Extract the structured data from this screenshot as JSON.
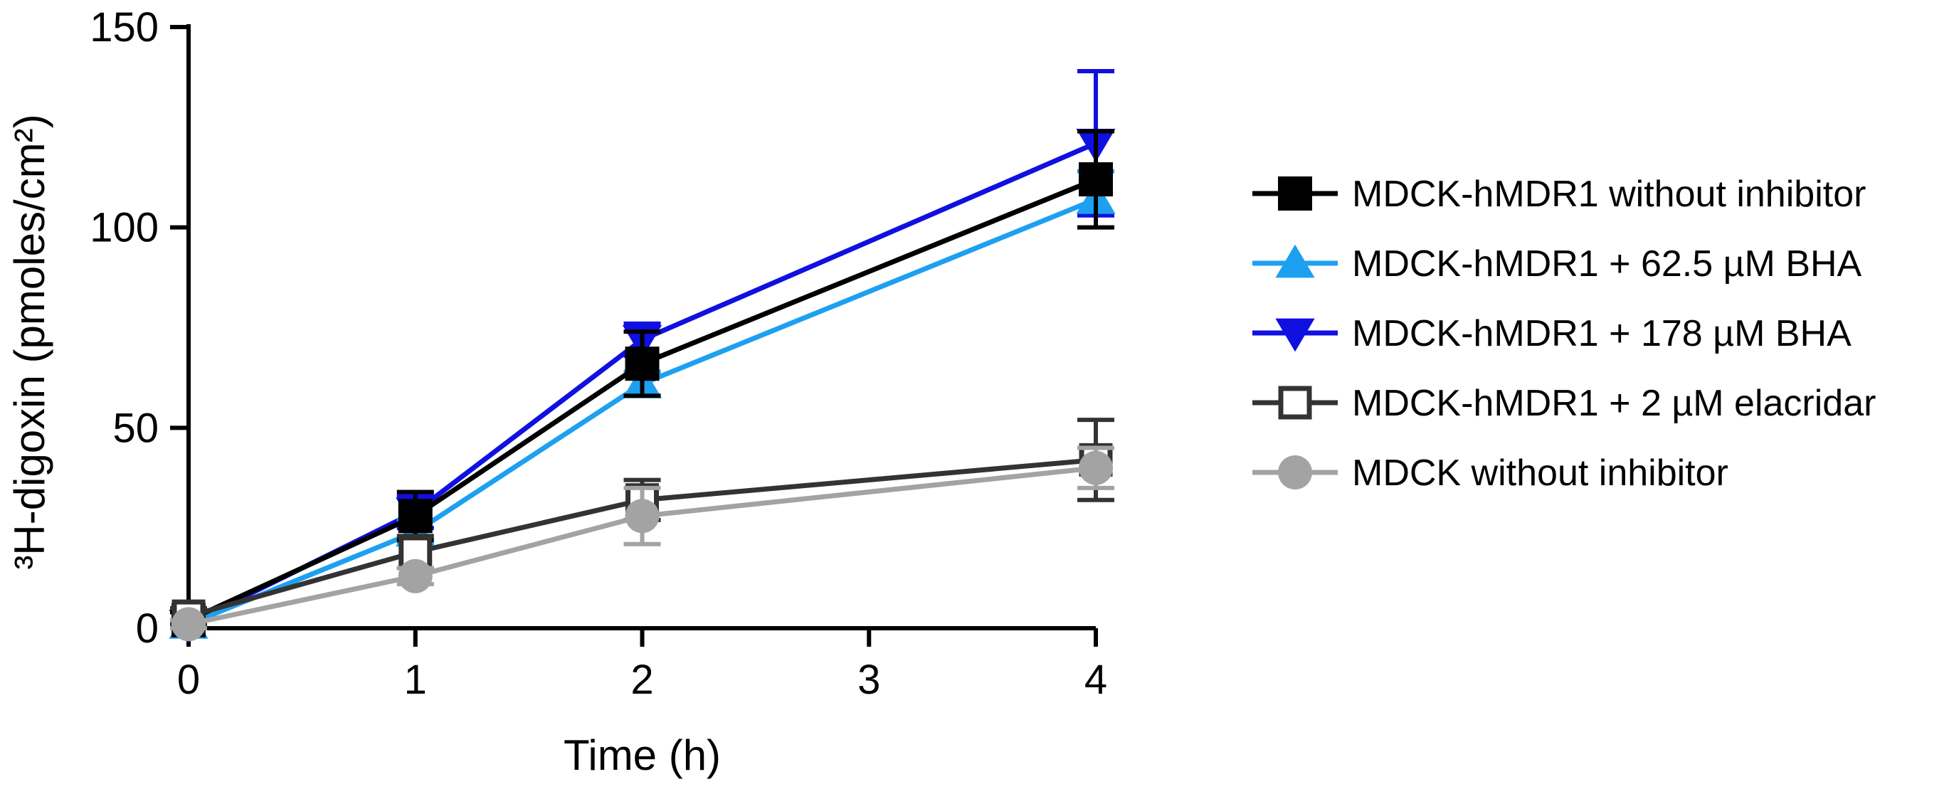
{
  "chart_data": {
    "type": "line",
    "title": "",
    "xlabel": "Time (h)",
    "ylabel": "³H-digoxin (pmoles/cm²)",
    "x": [
      0,
      1,
      2,
      4
    ],
    "xlim": [
      0,
      4
    ],
    "ylim": [
      0,
      150
    ],
    "xticks": [
      0,
      1,
      2,
      3,
      4
    ],
    "xtick_labels": [
      "0",
      "1",
      "2",
      "3",
      "4"
    ],
    "yticks": [
      0,
      50,
      100,
      150
    ],
    "ytick_labels": [
      "0",
      "50",
      "100",
      "150"
    ],
    "grid": false,
    "legend_position": "right",
    "series": [
      {
        "name": "MDCK-hMDR1 + 178 µM BHA",
        "color": "#1010e0",
        "marker": "triangle-down",
        "values": [
          1,
          29,
          72,
          121
        ],
        "errors": [
          1,
          4,
          4,
          18
        ]
      },
      {
        "name": "MDCK-hMDR1 + 62.5 µM BHA",
        "color": "#1ea0f0",
        "marker": "triangle-up",
        "values": [
          1,
          24,
          61,
          107
        ],
        "errors": [
          1,
          3,
          3,
          7
        ]
      },
      {
        "name": "MDCK-hMDR1 without inhibitor",
        "color": "#000000",
        "marker": "square-filled",
        "values": [
          2,
          28,
          66,
          112
        ],
        "errors": [
          2,
          6,
          8,
          12
        ]
      },
      {
        "name": "MDCK-hMDR1 + 2 µM elacridar",
        "color": "#333333",
        "marker": "square-open",
        "values": [
          3,
          19,
          32,
          42
        ],
        "errors": [
          2,
          4,
          5,
          10
        ]
      },
      {
        "name": "MDCK without inhibitor",
        "color": "#a3a3a3",
        "marker": "circle",
        "values": [
          1,
          13,
          28,
          40
        ],
        "errors": [
          1,
          2,
          7,
          5
        ]
      }
    ],
    "legend_order": [
      "MDCK-hMDR1 without inhibitor",
      "MDCK-hMDR1 + 62.5 µM BHA",
      "MDCK-hMDR1 + 178 µM BHA",
      "MDCK-hMDR1 + 2 µM elacridar",
      "MDCK without inhibitor"
    ]
  }
}
